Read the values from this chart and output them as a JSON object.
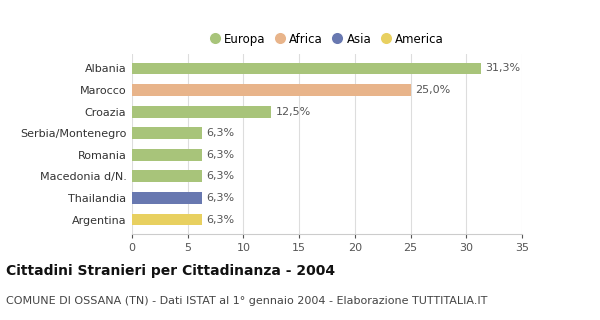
{
  "categories": [
    "Albania",
    "Marocco",
    "Croazia",
    "Serbia/Montenegro",
    "Romania",
    "Macedonia d/N.",
    "Thailandia",
    "Argentina"
  ],
  "values": [
    31.3,
    25.0,
    12.5,
    6.3,
    6.3,
    6.3,
    6.3,
    6.3
  ],
  "labels": [
    "31,3%",
    "25,0%",
    "12,5%",
    "6,3%",
    "6,3%",
    "6,3%",
    "6,3%",
    "6,3%"
  ],
  "bar_colors": [
    "#a8c47a",
    "#e8b48a",
    "#a8c47a",
    "#a8c47a",
    "#a8c47a",
    "#a8c47a",
    "#6878b0",
    "#e8d060"
  ],
  "legend_labels": [
    "Europa",
    "Africa",
    "Asia",
    "America"
  ],
  "legend_colors": [
    "#a8c47a",
    "#e8b48a",
    "#6878b0",
    "#e8d060"
  ],
  "title": "Cittadini Stranieri per Cittadinanza - 2004",
  "subtitle": "COMUNE DI OSSANA (TN) - Dati ISTAT al 1° gennaio 2004 - Elaborazione TUTTITALIA.IT",
  "xlim": [
    0,
    35
  ],
  "xticks": [
    0,
    5,
    10,
    15,
    20,
    25,
    30,
    35
  ],
  "background_color": "#ffffff",
  "bar_height": 0.55,
  "title_fontsize": 10,
  "subtitle_fontsize": 8
}
